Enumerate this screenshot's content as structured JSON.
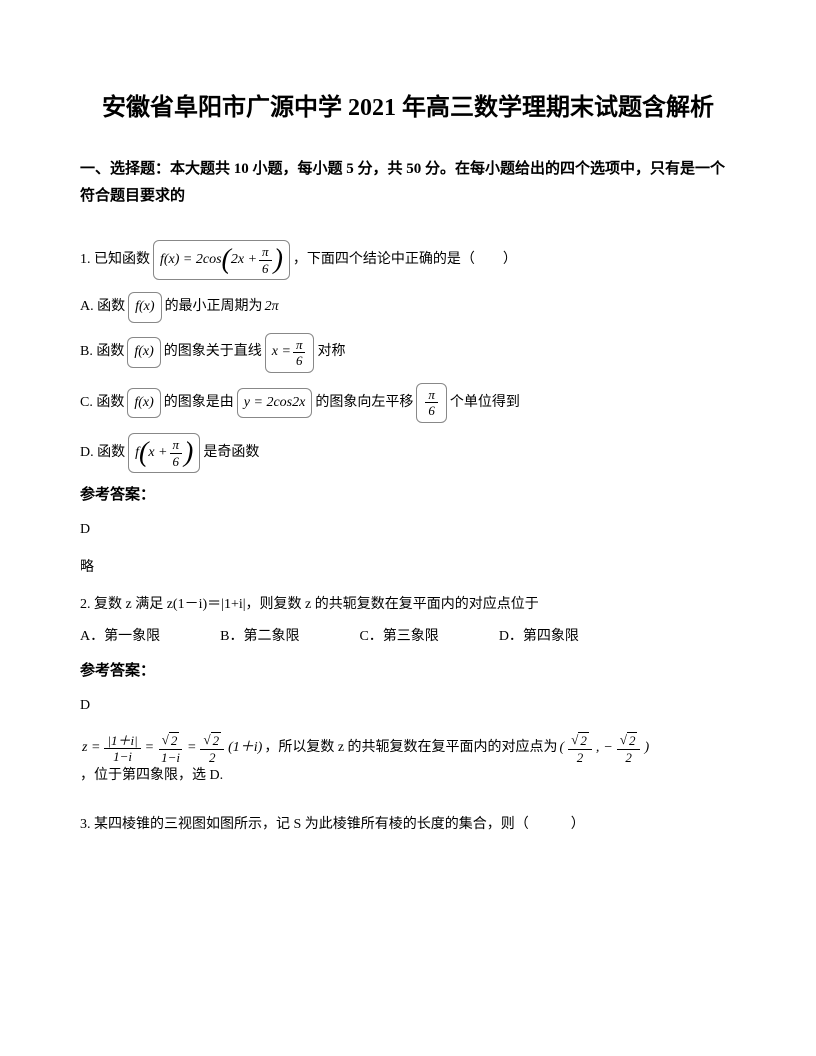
{
  "title": "安徽省阜阳市广源中学 2021 年高三数学理期末试题含解析",
  "section_header": "一、选择题：本大题共 10 小题，每小题 5 分，共 50 分。在每小题给出的四个选项中，只有是一个符合题目要求的",
  "q1": {
    "prefix": "1. 已知函数",
    "formula": "f(x) = 2cos",
    "formula_inner": "2x +",
    "formula_frac_num": "π",
    "formula_frac_den": "6",
    "suffix": "，下面四个结论中正确的是（　　）",
    "optA_pre": "A. 函数",
    "optA_fx": "f(x)",
    "optA_mid": "的最小正周期为",
    "optA_end": "2π",
    "optB_pre": "B. 函数",
    "optB_fx": "f(x)",
    "optB_mid": "的图象关于直线",
    "optB_formula_pre": "x =",
    "optB_frac_num": "π",
    "optB_frac_den": "6",
    "optB_end": "对称",
    "optC_pre": "C. 函数",
    "optC_fx": "f(x)",
    "optC_mid": "的图象是由",
    "optC_formula": "y = 2cos2x",
    "optC_mid2": "的图象向左平移",
    "optC_frac_num": "π",
    "optC_frac_den": "6",
    "optC_end": "个单位得到",
    "optD_pre": "D. 函数",
    "optD_formula_pre": "f",
    "optD_formula_inner": "x +",
    "optD_frac_num": "π",
    "optD_frac_den": "6",
    "optD_end": "是奇函数",
    "answer_label": "参考答案：",
    "answer": "D",
    "answer_detail": "略"
  },
  "q2": {
    "text": "2. 复数 z 满足 z(1－i)＝|1+i|，则复数 z 的共轭复数在复平面内的对应点位于",
    "optA": "A．第一象限",
    "optB": "B．第二象限",
    "optC": "C．第三象限",
    "optD": "D．第四象限",
    "answer_label": "参考答案：",
    "answer": "D",
    "sol_pre": "z =",
    "sol_f1_num": "|1＋i|",
    "sol_f1_den": "1−i",
    "sol_eq1": "=",
    "sol_f2_num_sqrt": "2",
    "sol_f2_den": "1−i",
    "sol_eq2": "=",
    "sol_f3_num_sqrt": "2",
    "sol_f3_den": "2",
    "sol_paren": "(1＋i)",
    "sol_mid": "，所以复数 z 的共轭复数在复平面内的对应点为",
    "sol_point_f1_num_sqrt": "2",
    "sol_point_f1_den": "2",
    "sol_point_comma": ",",
    "sol_point_neg": "−",
    "sol_point_f2_num_sqrt": "2",
    "sol_point_f2_den": "2",
    "sol_end": "，位于第四象限，选 D."
  },
  "q3": {
    "text": "3. 某四棱锥的三视图如图所示，记 S 为此棱锥所有棱的长度的集合，则（　　　）"
  },
  "colors": {
    "text": "#000000",
    "background": "#ffffff",
    "border": "#888888"
  },
  "fonts": {
    "body_size": 14,
    "title_size": 24,
    "section_size": 15
  }
}
